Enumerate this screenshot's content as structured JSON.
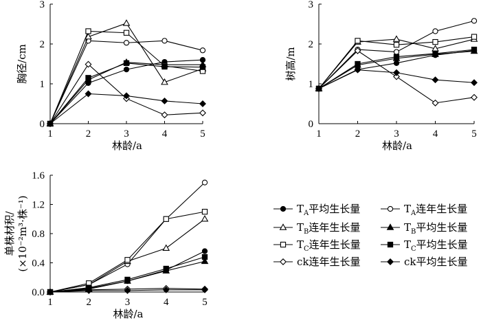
{
  "chart_data": [
    {
      "type": "line",
      "xlabel": "林龄/a",
      "ylabel": "胸径/cm",
      "x": [
        1,
        2,
        3,
        4,
        5
      ],
      "xlim": [
        1,
        5
      ],
      "ylim": [
        0,
        3
      ],
      "xticks": [
        "1",
        "2",
        "3",
        "4",
        "5"
      ],
      "yticks": [
        "0",
        "1",
        "2",
        "3"
      ],
      "series": [
        {
          "key": "TA_avg",
          "values": [
            0,
            1.02,
            1.36,
            1.55,
            1.6
          ]
        },
        {
          "key": "TA_cont",
          "values": [
            0,
            2.08,
            2.03,
            2.08,
            1.84
          ]
        },
        {
          "key": "TB_cont",
          "values": [
            0,
            2.18,
            2.52,
            1.04,
            1.38
          ]
        },
        {
          "key": "TB_avg",
          "values": [
            0,
            1.1,
            1.54,
            1.48,
            1.48
          ]
        },
        {
          "key": "TC_cont",
          "values": [
            0,
            2.32,
            2.28,
            1.45,
            1.32
          ]
        },
        {
          "key": "TC_avg",
          "values": [
            0,
            1.15,
            1.52,
            1.43,
            1.42
          ]
        },
        {
          "key": "ck_cont",
          "values": [
            0,
            1.49,
            0.63,
            0.22,
            0.27
          ]
        },
        {
          "key": "ck_avg",
          "values": [
            0,
            0.75,
            0.7,
            0.57,
            0.5
          ]
        }
      ]
    },
    {
      "type": "line",
      "xlabel": "林龄/a",
      "ylabel": "树高/m",
      "x": [
        1,
        2,
        3,
        4,
        5
      ],
      "xlim": [
        1,
        5
      ],
      "ylim": [
        0,
        3
      ],
      "xticks": [
        "1",
        "2",
        "3",
        "4",
        "5"
      ],
      "yticks": [
        "0",
        "1",
        "2",
        "3"
      ],
      "series": [
        {
          "key": "TA_avg",
          "values": [
            0.88,
            1.36,
            1.52,
            1.72,
            1.84
          ]
        },
        {
          "key": "TA_cont",
          "values": [
            0.88,
            1.86,
            1.8,
            2.32,
            2.58
          ]
        },
        {
          "key": "TB_cont",
          "values": [
            0.88,
            2.05,
            2.12,
            1.88,
            2.12
          ]
        },
        {
          "key": "TB_avg",
          "values": [
            0.88,
            1.47,
            1.64,
            1.74,
            1.82
          ]
        },
        {
          "key": "TC_cont",
          "values": [
            0.88,
            2.08,
            1.98,
            2.05,
            2.18
          ]
        },
        {
          "key": "TC_avg",
          "values": [
            0.88,
            1.5,
            1.68,
            1.76,
            1.86
          ]
        },
        {
          "key": "ck_cont",
          "values": [
            0.88,
            1.83,
            1.18,
            0.52,
            0.66
          ]
        },
        {
          "key": "ck_avg",
          "values": [
            0.88,
            1.35,
            1.28,
            1.1,
            1.03
          ]
        }
      ]
    },
    {
      "type": "line",
      "xlabel": "林龄/a",
      "ylabel_line1": "单株材积/",
      "ylabel_line2": "(×10⁻²m³·株⁻¹)",
      "x": [
        1,
        2,
        3,
        4,
        5
      ],
      "xlim": [
        1,
        5
      ],
      "ylim": [
        0,
        1.6
      ],
      "xticks": [
        "1",
        "2",
        "3",
        "4",
        "5"
      ],
      "yticks": [
        "0.0",
        "0.4",
        "0.8",
        "1.2",
        "1.6"
      ],
      "series": [
        {
          "key": "TA_avg",
          "values": [
            0,
            0.05,
            0.15,
            0.3,
            0.56
          ]
        },
        {
          "key": "TA_cont",
          "values": [
            0,
            0.1,
            0.38,
            1.0,
            1.5
          ]
        },
        {
          "key": "TB_cont",
          "values": [
            0,
            0.1,
            0.42,
            0.6,
            1.0
          ]
        },
        {
          "key": "TB_avg",
          "values": [
            0,
            0.04,
            0.15,
            0.29,
            0.42
          ]
        },
        {
          "key": "TC_cont",
          "values": [
            0,
            0.12,
            0.44,
            1.0,
            1.1
          ]
        },
        {
          "key": "TC_avg",
          "values": [
            0,
            0.06,
            0.17,
            0.32,
            0.48
          ]
        },
        {
          "key": "ck_cont",
          "values": [
            0,
            0.03,
            0.04,
            0.05,
            0.04
          ]
        },
        {
          "key": "ck_avg",
          "values": [
            0,
            0.02,
            0.02,
            0.03,
            0.03
          ]
        }
      ]
    }
  ],
  "legend": [
    {
      "key": "TA_avg",
      "marker": "circle",
      "filled": true,
      "prefix": "T",
      "sub": "A",
      "suffix": "平均生长量"
    },
    {
      "key": "TA_cont",
      "marker": "circle",
      "filled": false,
      "prefix": "T",
      "sub": "A",
      "suffix": "连年生长量"
    },
    {
      "key": "TB_cont",
      "marker": "triangle",
      "filled": false,
      "prefix": "T",
      "sub": "B",
      "suffix": "连年生长量"
    },
    {
      "key": "TB_avg",
      "marker": "triangle",
      "filled": true,
      "prefix": "T",
      "sub": "B",
      "suffix": "平均生长量"
    },
    {
      "key": "TC_cont",
      "marker": "square",
      "filled": false,
      "prefix": "T",
      "sub": "C",
      "suffix": "连年生长量"
    },
    {
      "key": "TC_avg",
      "marker": "square",
      "filled": true,
      "prefix": "T",
      "sub": "C",
      "suffix": "平均生长量"
    },
    {
      "key": "ck_cont",
      "marker": "diamond",
      "filled": false,
      "prefix": "ck",
      "sub": "",
      "suffix": "连年生长量"
    },
    {
      "key": "ck_avg",
      "marker": "diamond",
      "filled": true,
      "prefix": "ck",
      "sub": "",
      "suffix": "平均生长量"
    }
  ],
  "colors": {
    "line": "#000000",
    "background": "#ffffff"
  }
}
